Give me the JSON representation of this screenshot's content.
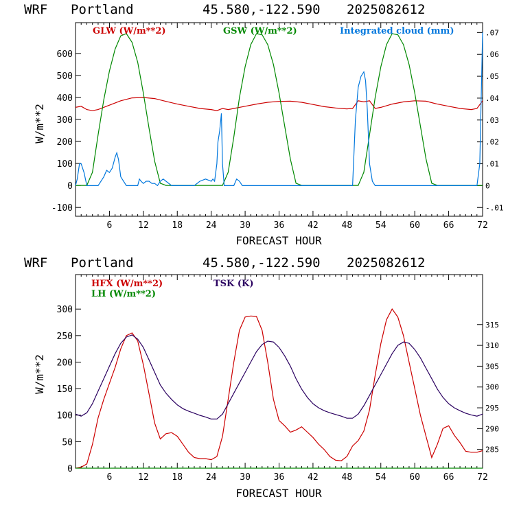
{
  "chart_data": [
    {
      "type": "line",
      "header": {
        "model": "WRF",
        "site": "Portland",
        "coords": "45.580,-122.590",
        "run": "2025082612"
      },
      "xlabel": "FORECAST HOUR",
      "ylabel": "W/m**2",
      "xlim": [
        0,
        72
      ],
      "ylim": [
        -140,
        740
      ],
      "xticks": [
        6,
        12,
        18,
        24,
        30,
        36,
        42,
        48,
        54,
        60,
        66,
        72
      ],
      "yticks": [
        -100,
        0,
        100,
        200,
        300,
        400,
        500,
        600
      ],
      "y2lim": [
        -0.014,
        0.0745
      ],
      "y2ticks": [
        -0.01,
        0,
        0.01,
        0.02,
        0.03,
        0.04,
        0.05,
        0.06,
        0.07
      ],
      "y2ticklabels": [
        "-.01",
        "0",
        ".01",
        ".02",
        ".03",
        ".04",
        ".05",
        ".06",
        ".07"
      ],
      "series": [
        {
          "name": "GLW (W/m**2)",
          "color": "#cc0000",
          "axis": "left",
          "x": [
            0,
            1,
            2,
            3,
            4,
            6,
            8,
            10,
            12,
            14,
            16,
            18,
            20,
            22,
            24,
            25,
            26,
            27,
            28,
            30,
            32,
            34,
            36,
            38,
            40,
            42,
            44,
            46,
            48,
            49,
            50,
            51,
            52,
            53,
            54,
            56,
            58,
            60,
            62,
            64,
            66,
            68,
            70,
            71,
            72
          ],
          "y": [
            355,
            360,
            345,
            340,
            345,
            365,
            385,
            398,
            400,
            395,
            382,
            370,
            360,
            350,
            345,
            340,
            350,
            345,
            350,
            360,
            370,
            378,
            382,
            383,
            378,
            368,
            358,
            352,
            348,
            350,
            385,
            380,
            385,
            350,
            355,
            370,
            380,
            385,
            383,
            370,
            360,
            350,
            345,
            350,
            385
          ]
        },
        {
          "name": "GSW (W/m**2)",
          "color": "#008800",
          "axis": "left",
          "x": [
            0,
            1,
            2,
            3,
            4,
            5,
            6,
            7,
            8,
            9,
            10,
            11,
            12,
            13,
            14,
            15,
            16,
            26,
            27,
            28,
            29,
            30,
            31,
            32,
            33,
            34,
            35,
            36,
            37,
            38,
            39,
            40,
            50,
            51,
            52,
            53,
            54,
            55,
            56,
            57,
            58,
            59,
            60,
            61,
            62,
            63,
            64,
            72
          ],
          "y": [
            0,
            0,
            0,
            60,
            230,
            390,
            520,
            620,
            680,
            690,
            650,
            560,
            420,
            260,
            110,
            10,
            0,
            0,
            60,
            220,
            400,
            540,
            640,
            690,
            685,
            640,
            550,
            420,
            270,
            120,
            10,
            0,
            0,
            60,
            230,
            400,
            540,
            640,
            690,
            685,
            640,
            550,
            420,
            270,
            120,
            10,
            0,
            0
          ]
        },
        {
          "name": "Integrated cloud (mm)",
          "color": "#0077dd",
          "axis": "right",
          "x": [
            0,
            0.3,
            0.7,
            1,
            1.5,
            2,
            3,
            4,
            5,
            5.5,
            6,
            6.5,
            7,
            7.3,
            7.6,
            8,
            8.5,
            9,
            10,
            11,
            11.3,
            11.6,
            12,
            12.5,
            13,
            13.5,
            14,
            14.5,
            15,
            15.5,
            16,
            17,
            18,
            21,
            22,
            23,
            24,
            24.3,
            24.6,
            25,
            25.2,
            25.5,
            25.8,
            26,
            26.3,
            27,
            28,
            28.5,
            29,
            29.5,
            30,
            48,
            49,
            49.5,
            50,
            50.5,
            51,
            51.3,
            51.6,
            52,
            52.5,
            53,
            54,
            70,
            71,
            71.5,
            72
          ],
          "y": [
            0,
            0.003,
            0.01,
            0.01,
            0.006,
            0,
            0,
            0,
            0.004,
            0.007,
            0.006,
            0.008,
            0.013,
            0.015,
            0.012,
            0.004,
            0.002,
            0,
            0,
            0,
            0.003,
            0.002,
            0.001,
            0.002,
            0.002,
            0.001,
            0.001,
            0,
            0.002,
            0.003,
            0.002,
            0,
            0,
            0,
            0.002,
            0.003,
            0.002,
            0.003,
            0.002,
            0.01,
            0.02,
            0.025,
            0.033,
            0.01,
            0,
            0,
            0,
            0.003,
            0.002,
            0,
            0,
            0,
            0,
            0.03,
            0.045,
            0.05,
            0.052,
            0.048,
            0.035,
            0.01,
            0.002,
            0,
            0,
            0,
            0,
            0.01,
            0.07
          ]
        }
      ]
    },
    {
      "type": "line",
      "header": {
        "model": "WRF",
        "site": "Portland",
        "coords": "45.580,-122.590",
        "run": "2025082612"
      },
      "xlabel": "FORECAST HOUR",
      "ylabel": "W/m**2",
      "xlim": [
        0,
        72
      ],
      "ylim": [
        0,
        365
      ],
      "xticks": [
        6,
        12,
        18,
        24,
        30,
        36,
        42,
        48,
        54,
        60,
        66,
        72
      ],
      "yticks": [
        0,
        50,
        100,
        150,
        200,
        250,
        300
      ],
      "y2lim": [
        280.5,
        327
      ],
      "y2ticks": [
        285,
        290,
        295,
        300,
        305,
        310,
        315
      ],
      "series": [
        {
          "name": "HFX (W/m**2)",
          "color": "#cc0000",
          "axis": "left",
          "x": [
            0,
            1,
            2,
            3,
            4,
            5,
            6,
            7,
            8,
            9,
            10,
            11,
            12,
            13,
            14,
            15,
            16,
            17,
            18,
            19,
            20,
            21,
            22,
            23,
            24,
            25,
            26,
            27,
            28,
            29,
            30,
            31,
            32,
            33,
            34,
            35,
            36,
            37,
            38,
            39,
            40,
            41,
            42,
            43,
            44,
            45,
            46,
            47,
            48,
            49,
            50,
            51,
            52,
            53,
            54,
            55,
            56,
            57,
            58,
            59,
            60,
            61,
            62,
            63,
            64,
            65,
            66,
            67,
            68,
            69,
            70,
            71,
            72
          ],
          "y": [
            0,
            2,
            8,
            45,
            95,
            130,
            160,
            190,
            225,
            250,
            255,
            240,
            195,
            140,
            85,
            55,
            65,
            67,
            60,
            45,
            30,
            20,
            18,
            18,
            16,
            22,
            60,
            130,
            200,
            260,
            285,
            287,
            286,
            260,
            200,
            130,
            90,
            80,
            68,
            72,
            78,
            68,
            58,
            45,
            35,
            22,
            15,
            14,
            22,
            42,
            52,
            70,
            110,
            175,
            235,
            280,
            300,
            285,
            250,
            200,
            150,
            100,
            60,
            20,
            45,
            75,
            80,
            62,
            48,
            32,
            30,
            30,
            33
          ]
        },
        {
          "name": "LH (W/m**2)",
          "color": "#008800",
          "axis": "left",
          "x": [
            0,
            72
          ],
          "y": [
            0,
            0
          ]
        },
        {
          "name": "TSK (K)",
          "color": "#2a0060",
          "axis": "right",
          "x": [
            0,
            1,
            2,
            3,
            4,
            5,
            6,
            7,
            8,
            9,
            10,
            11,
            12,
            13,
            14,
            15,
            16,
            17,
            18,
            19,
            20,
            21,
            22,
            23,
            24,
            25,
            26,
            27,
            28,
            29,
            30,
            31,
            32,
            33,
            34,
            35,
            36,
            37,
            38,
            39,
            40,
            41,
            42,
            43,
            44,
            45,
            46,
            47,
            48,
            49,
            50,
            51,
            52,
            53,
            54,
            55,
            56,
            57,
            58,
            59,
            60,
            61,
            62,
            63,
            64,
            65,
            66,
            67,
            68,
            69,
            70,
            71,
            72
          ],
          "y": [
            293.5,
            293.0,
            293.8,
            296.0,
            299.0,
            302.0,
            305.0,
            308.0,
            310.5,
            312.0,
            312.5,
            311.5,
            309.5,
            306.5,
            303.5,
            300.5,
            298.5,
            297.0,
            295.7,
            294.8,
            294.2,
            293.7,
            293.2,
            292.8,
            292.3,
            292.3,
            293.5,
            296.0,
            298.5,
            301.0,
            303.5,
            306.0,
            308.5,
            310.2,
            311.0,
            310.8,
            309.5,
            307.5,
            305.0,
            302.0,
            299.5,
            297.5,
            296.0,
            295.0,
            294.3,
            293.8,
            293.4,
            293.0,
            292.5,
            292.5,
            293.5,
            295.5,
            298.0,
            300.5,
            303.0,
            305.5,
            308.0,
            310.0,
            310.8,
            310.5,
            309.0,
            307.0,
            304.5,
            302.0,
            299.5,
            297.5,
            296.0,
            295.0,
            294.3,
            293.7,
            293.3,
            293.0,
            293.5
          ]
        }
      ]
    }
  ]
}
